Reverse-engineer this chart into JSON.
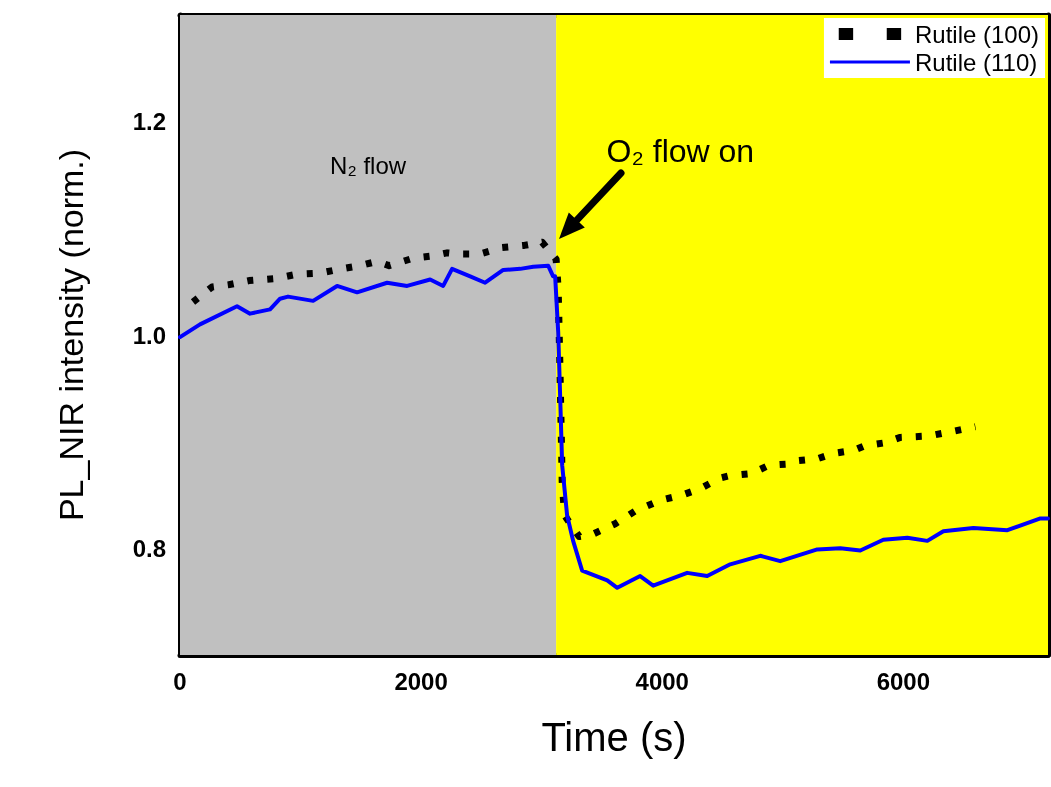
{
  "chart_data": {
    "type": "line",
    "xlabel": "Time (s)",
    "ylabel": "PL_NIR intensity (norm.)",
    "xlim": [
      0,
      7200
    ],
    "xticks": [
      0,
      2000,
      4000,
      6000
    ],
    "ylim": [
      0.7,
      1.3
    ],
    "yticks": [
      {
        "value": 0.8,
        "label": "0.8"
      },
      {
        "value": 1,
        "label": "1.0"
      },
      {
        "value": 1.2,
        "label": "1.2"
      }
    ],
    "legend": "top right",
    "marker": "none",
    "bands": [
      {
        "axis": "x",
        "from": 0,
        "to": 3120,
        "label": "N₂ flow",
        "color": "#c0c0c0"
      },
      {
        "axis": "x",
        "from": 3120,
        "to": 7200,
        "color": "#ffff00"
      }
    ],
    "annotations": [
      {
        "text": "O₂ flow on",
        "x": 3140,
        "y": 1.09
      }
    ],
    "series": [
      {
        "name": "Rutile (100)",
        "color": "#000000",
        "line_style": "dotted",
        "x": [
          108,
          266,
          398,
          573,
          797,
          971,
          1162,
          1336,
          1494,
          1635,
          1735,
          1934,
          2091,
          2216,
          2299,
          2490,
          2672,
          2855,
          3004,
          3120,
          3137,
          3150,
          3160,
          3170,
          3190,
          3311,
          3419,
          3610,
          3776,
          3983,
          4166,
          4315,
          4481,
          4556,
          4739,
          4888,
          5037,
          5112,
          5286,
          5419,
          5593,
          5676,
          5851,
          5975,
          6158,
          6241,
          6423,
          6598
        ],
        "values": [
          1.031,
          1.045,
          1.047,
          1.051,
          1.053,
          1.057,
          1.058,
          1.062,
          1.065,
          1.069,
          1.065,
          1.072,
          1.074,
          1.077,
          1.076,
          1.076,
          1.082,
          1.084,
          1.087,
          1.071,
          1.043,
          0.978,
          0.922,
          0.863,
          0.831,
          0.811,
          0.813,
          0.823,
          0.835,
          0.845,
          0.85,
          0.856,
          0.866,
          0.868,
          0.87,
          0.878,
          0.879,
          0.882,
          0.884,
          0.889,
          0.892,
          0.896,
          0.899,
          0.904,
          0.905,
          0.906,
          0.91,
          0.914
        ]
      },
      {
        "name": "Rutile (110)",
        "color": "#0000ff",
        "line_style": "solid",
        "x": [
          0,
          166,
          473,
          581,
          747,
          830,
          896,
          1104,
          1303,
          1469,
          1718,
          1884,
          2075,
          2183,
          2257,
          2407,
          2531,
          2681,
          2822,
          2930,
          3054,
          3095,
          3112,
          3137,
          3154,
          3170,
          3211,
          3261,
          3336,
          3544,
          3627,
          3817,
          3925,
          4207,
          4373,
          4564,
          4813,
          4979,
          5286,
          5477,
          5643,
          5834,
          6033,
          6199,
          6332,
          6581,
          6863,
          7137,
          7200
        ],
        "values": [
          0.998,
          1.01,
          1.027,
          1.02,
          1.024,
          1.034,
          1.036,
          1.032,
          1.046,
          1.04,
          1.049,
          1.046,
          1.052,
          1.046,
          1.062,
          1.055,
          1.049,
          1.061,
          1.062,
          1.064,
          1.065,
          1.055,
          1.055,
          1.003,
          0.94,
          0.878,
          0.831,
          0.807,
          0.779,
          0.77,
          0.763,
          0.774,
          0.765,
          0.777,
          0.774,
          0.785,
          0.793,
          0.788,
          0.799,
          0.8,
          0.798,
          0.808,
          0.81,
          0.807,
          0.816,
          0.819,
          0.817,
          0.828,
          0.828
        ]
      }
    ]
  }
}
